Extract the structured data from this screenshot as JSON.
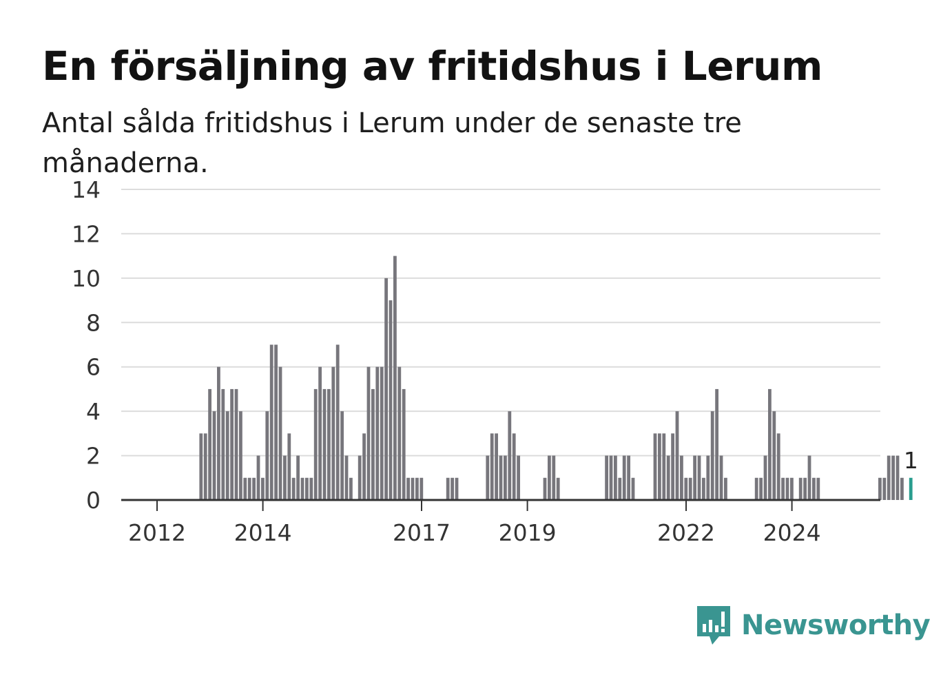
{
  "header": {
    "title": "En försäljning av fritidshus i Lerum",
    "subtitle": "Antal sålda fritidshus i Lerum under de senaste tre månaderna."
  },
  "brand": {
    "name": "Newsworthy",
    "icon": "newsworthy-logo-icon",
    "color": "#3a9591"
  },
  "colors": {
    "bar": "#77767c",
    "highlight": "#2a9d8f",
    "grid": "#dcdcdc",
    "axis": "#333333"
  },
  "chart_data": {
    "type": "bar",
    "x_start": "2011-01",
    "frequency": "monthly",
    "ylim": [
      0,
      14
    ],
    "yticks": [
      0,
      2,
      4,
      6,
      8,
      10,
      12,
      14
    ],
    "xticks": [
      {
        "label": "2012",
        "date": "2012-01"
      },
      {
        "label": "2014",
        "date": "2014-01"
      },
      {
        "label": "2017",
        "date": "2017-01"
      },
      {
        "label": "2019",
        "date": "2019-01"
      },
      {
        "label": "2022",
        "date": "2022-01"
      },
      {
        "label": "2024",
        "date": "2024-01"
      }
    ],
    "values": [
      0,
      0,
      0,
      0,
      0,
      0,
      0,
      0,
      0,
      0,
      0,
      0,
      0,
      0,
      0,
      0,
      0,
      0,
      0,
      0,
      0,
      0,
      3,
      3,
      5,
      4,
      6,
      5,
      4,
      5,
      5,
      4,
      1,
      1,
      1,
      2,
      1,
      4,
      7,
      7,
      6,
      2,
      3,
      1,
      2,
      1,
      1,
      1,
      5,
      6,
      5,
      5,
      6,
      7,
      4,
      2,
      1,
      0,
      2,
      3,
      6,
      5,
      6,
      6,
      10,
      9,
      11,
      6,
      5,
      1,
      1,
      1,
      1,
      0,
      0,
      0,
      0,
      0,
      1,
      1,
      1,
      0,
      0,
      0,
      0,
      0,
      0,
      2,
      3,
      3,
      2,
      2,
      4,
      3,
      2,
      0,
      0,
      0,
      0,
      0,
      1,
      2,
      2,
      1,
      0,
      0,
      0,
      0,
      0,
      0,
      0,
      0,
      0,
      0,
      2,
      2,
      2,
      1,
      2,
      2,
      1,
      0,
      0,
      0,
      0,
      3,
      3,
      3,
      2,
      3,
      4,
      2,
      1,
      1,
      2,
      2,
      1,
      2,
      4,
      5,
      2,
      1,
      0,
      0,
      0,
      0,
      0,
      0,
      1,
      1,
      2,
      5,
      4,
      3,
      1,
      1,
      1,
      0,
      1,
      1,
      2,
      1,
      1,
      0,
      0,
      0,
      0,
      0,
      0,
      0,
      0,
      0,
      0,
      0,
      0,
      0,
      1,
      1,
      2,
      2,
      2,
      1,
      0,
      1
    ],
    "highlight_last": true,
    "last_label": "1"
  }
}
